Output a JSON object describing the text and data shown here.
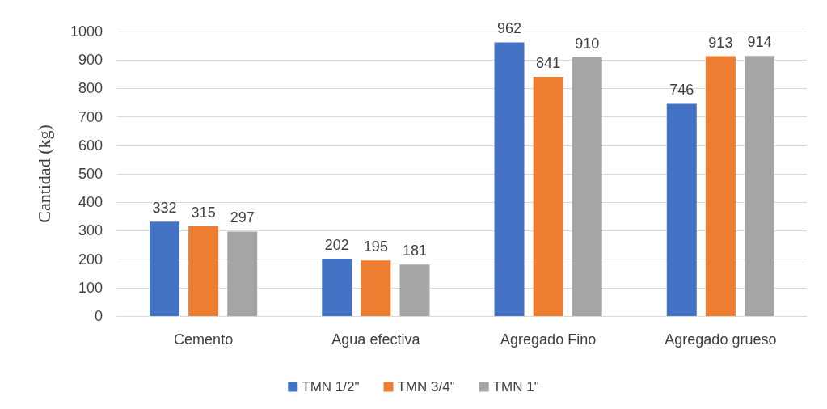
{
  "chart_data": {
    "type": "bar",
    "ylabel": "Cantidad (kg)",
    "categories": [
      "Cemento",
      "Agua efectiva",
      "Agregado Fino",
      "Agregado grueso"
    ],
    "series": [
      {
        "name": "TMN 1/2\"",
        "color": "#4472c4",
        "values": [
          332,
          202,
          962,
          746
        ]
      },
      {
        "name": "TMN 3/4\"",
        "color": "#ed7d31",
        "values": [
          315,
          195,
          841,
          913
        ]
      },
      {
        "name": "TMN 1\"",
        "color": "#a5a5a5",
        "values": [
          297,
          181,
          910,
          914
        ]
      }
    ],
    "ylim": [
      0,
      1000
    ],
    "yticks": [
      0,
      100,
      200,
      300,
      400,
      500,
      600,
      700,
      800,
      900,
      1000
    ],
    "grid": "y",
    "legend": "bottom",
    "data_labels": true
  }
}
